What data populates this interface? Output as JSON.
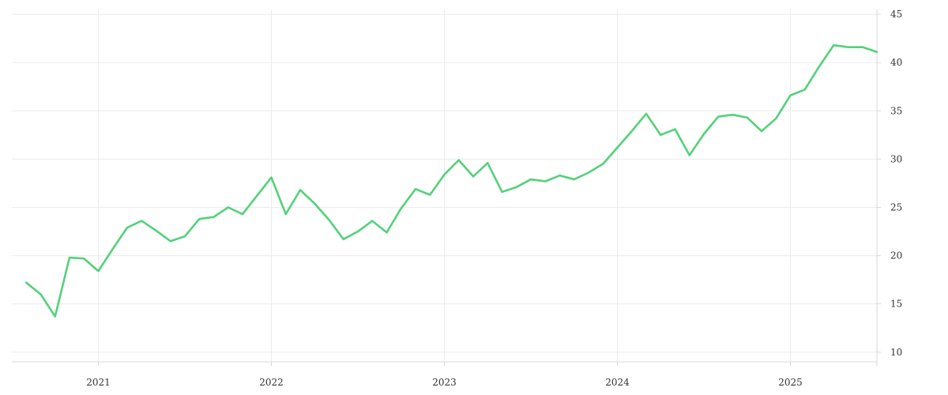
{
  "chart_data": {
    "type": "line",
    "title": "",
    "xlabel": "",
    "ylabel": "",
    "x_tick_labels": [
      "2021",
      "2022",
      "2023",
      "2024",
      "2025"
    ],
    "y_tick_labels": [
      "10",
      "15",
      "20",
      "25",
      "30",
      "35",
      "40",
      "45"
    ],
    "ylim": [
      9,
      45.5
    ],
    "xlim": [
      "2020-07",
      "2025-07"
    ],
    "grid": true,
    "y_axis_side": "right",
    "legend": "none",
    "series": [
      {
        "color": "#54d17a",
        "x": [
          "2020-08",
          "2020-09",
          "2020-10",
          "2020-11",
          "2020-12",
          "2021-01",
          "2021-02",
          "2021-03",
          "2021-04",
          "2021-05",
          "2021-06",
          "2021-07",
          "2021-08",
          "2021-09",
          "2021-10",
          "2021-11",
          "2021-12",
          "2022-01",
          "2022-02",
          "2022-03",
          "2022-04",
          "2022-05",
          "2022-06",
          "2022-07",
          "2022-08",
          "2022-09",
          "2022-10",
          "2022-11",
          "2022-12",
          "2023-01",
          "2023-02",
          "2023-03",
          "2023-04",
          "2023-05",
          "2023-06",
          "2023-07",
          "2023-08",
          "2023-09",
          "2023-10",
          "2023-11",
          "2023-12",
          "2024-01",
          "2024-02",
          "2024-03",
          "2024-04",
          "2024-05",
          "2024-06",
          "2024-07",
          "2024-08",
          "2024-09",
          "2024-10",
          "2024-11",
          "2024-12",
          "2025-01",
          "2025-02",
          "2025-03",
          "2025-04",
          "2025-05",
          "2025-06",
          "2025-07"
        ],
        "values": [
          17.2,
          16.0,
          13.7,
          19.8,
          19.7,
          18.4,
          20.7,
          22.9,
          23.6,
          22.6,
          21.5,
          22.0,
          23.8,
          24.0,
          25.0,
          24.3,
          26.2,
          28.1,
          24.3,
          26.8,
          25.4,
          23.7,
          21.7,
          22.5,
          23.6,
          22.4,
          24.9,
          26.9,
          26.3,
          28.4,
          29.9,
          28.2,
          29.6,
          26.6,
          27.1,
          27.9,
          27.7,
          28.3,
          27.9,
          28.6,
          29.5,
          31.2,
          32.9,
          34.7,
          32.5,
          33.1,
          30.4,
          32.6,
          34.4,
          34.6,
          34.3,
          32.9,
          34.2,
          36.6,
          37.2,
          39.6,
          41.8,
          41.6,
          41.6,
          41.1
        ]
      }
    ]
  }
}
